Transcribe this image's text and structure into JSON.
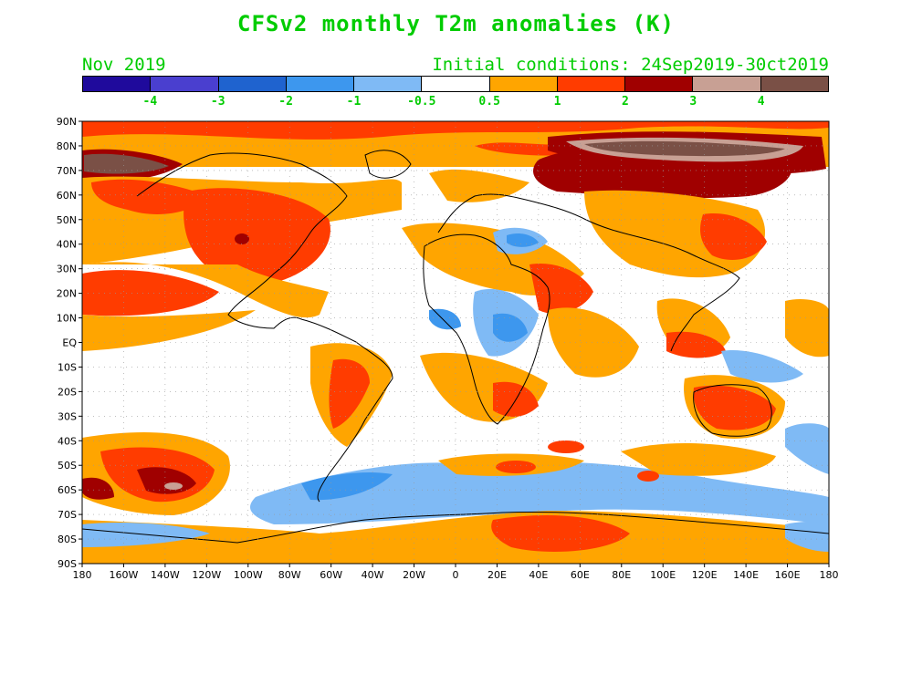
{
  "title": "CFSv2 monthly T2m anomalies (K)",
  "subtitle_left": "Nov 2019",
  "subtitle_right": "Initial conditions: 24Sep2019-30ct2019",
  "colorbar": {
    "colors": [
      "#1f0a9c",
      "#4a3fcf",
      "#1f63cf",
      "#3d97ee",
      "#7fbaf5",
      "#ffffff",
      "#ffa500",
      "#ff3c00",
      "#a00000",
      "#c8a094",
      "#7a5046"
    ],
    "labels": [
      "-4",
      "-3",
      "-2",
      "-1",
      "-0.5",
      "0.5",
      "1",
      "2",
      "3",
      "4"
    ]
  },
  "axes": {
    "lat_labels": [
      "90N",
      "80N",
      "70N",
      "60N",
      "50N",
      "40N",
      "30N",
      "20N",
      "10N",
      "EQ",
      "10S",
      "20S",
      "30S",
      "40S",
      "50S",
      "60S",
      "70S",
      "80S",
      "90S"
    ],
    "lon_labels": [
      "180",
      "160W",
      "140W",
      "120W",
      "100W",
      "80W",
      "60W",
      "40W",
      "20W",
      "0",
      "20E",
      "40E",
      "60E",
      "80E",
      "100E",
      "120E",
      "140E",
      "160E",
      "180"
    ]
  },
  "colors": {
    "title": "#00cc00",
    "coast": "#000000",
    "grid": "#999999"
  }
}
